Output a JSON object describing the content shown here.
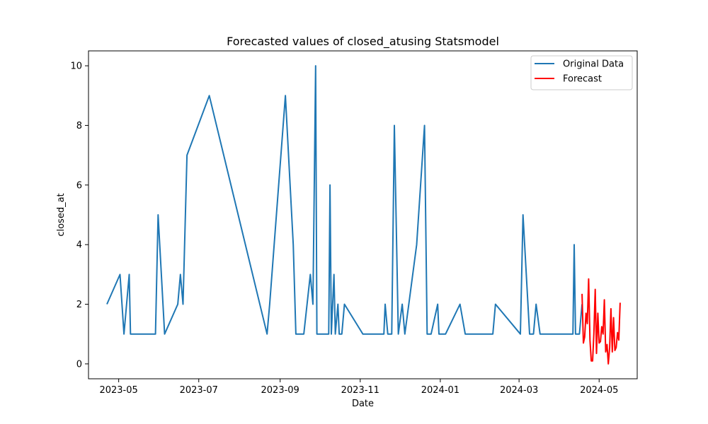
{
  "chart_data": {
    "type": "line",
    "title": "Forecasted values of closed_atusing Statsmodel",
    "xlabel": "Date",
    "ylabel": "closed_at",
    "xlim": [
      "2023-04-08",
      "2024-05-30"
    ],
    "ylim": [
      -0.5,
      10.5
    ],
    "x_ticks": [
      "2023-05",
      "2023-07",
      "2023-09",
      "2023-11",
      "2024-01",
      "2024-03",
      "2024-05"
    ],
    "y_ticks": [
      0,
      2,
      4,
      6,
      8,
      10
    ],
    "grid": false,
    "legend_position": "top-right",
    "series": [
      {
        "name": "Original Data",
        "color": "#1f77b4",
        "points": [
          [
            "2023-04-22",
            2
          ],
          [
            "2023-05-02",
            3
          ],
          [
            "2023-05-05",
            1
          ],
          [
            "2023-05-09",
            3
          ],
          [
            "2023-05-10",
            1
          ],
          [
            "2023-05-29",
            1
          ],
          [
            "2023-05-31",
            5
          ],
          [
            "2023-06-05",
            1
          ],
          [
            "2023-06-15",
            2
          ],
          [
            "2023-06-17",
            3
          ],
          [
            "2023-06-19",
            2
          ],
          [
            "2023-06-22",
            7
          ],
          [
            "2023-07-09",
            9
          ],
          [
            "2023-08-22",
            1
          ],
          [
            "2023-08-24",
            2
          ],
          [
            "2023-09-05",
            9
          ],
          [
            "2023-09-11",
            4
          ],
          [
            "2023-09-13",
            1
          ],
          [
            "2023-09-19",
            1
          ],
          [
            "2023-09-24",
            3
          ],
          [
            "2023-09-26",
            2
          ],
          [
            "2023-09-28",
            10
          ],
          [
            "2023-09-29",
            1
          ],
          [
            "2023-10-08",
            1
          ],
          [
            "2023-10-09",
            6
          ],
          [
            "2023-10-10",
            1
          ],
          [
            "2023-10-12",
            3
          ],
          [
            "2023-10-13",
            1
          ],
          [
            "2023-10-15",
            2
          ],
          [
            "2023-10-16",
            1
          ],
          [
            "2023-10-18",
            1
          ],
          [
            "2023-10-20",
            2
          ],
          [
            "2023-11-03",
            1
          ],
          [
            "2023-11-19",
            1
          ],
          [
            "2023-11-20",
            2
          ],
          [
            "2023-11-22",
            1
          ],
          [
            "2023-11-25",
            1
          ],
          [
            "2023-11-27",
            8
          ],
          [
            "2023-11-30",
            1
          ],
          [
            "2023-12-03",
            2
          ],
          [
            "2023-12-05",
            1
          ],
          [
            "2023-12-08",
            2
          ],
          [
            "2023-12-14",
            4
          ],
          [
            "2023-12-20",
            8
          ],
          [
            "2023-12-22",
            1
          ],
          [
            "2023-12-25",
            1
          ],
          [
            "2023-12-30",
            2
          ],
          [
            "2023-12-31",
            1
          ],
          [
            "2024-01-05",
            1
          ],
          [
            "2024-01-16",
            2
          ],
          [
            "2024-01-20",
            1
          ],
          [
            "2024-02-10",
            1
          ],
          [
            "2024-02-12",
            2
          ],
          [
            "2024-03-02",
            1
          ],
          [
            "2024-03-04",
            5
          ],
          [
            "2024-03-09",
            1
          ],
          [
            "2024-03-12",
            1
          ],
          [
            "2024-03-14",
            2
          ],
          [
            "2024-03-17",
            1
          ],
          [
            "2024-04-11",
            1
          ],
          [
            "2024-04-12",
            4
          ],
          [
            "2024-04-13",
            1
          ],
          [
            "2024-04-16",
            1
          ],
          [
            "2024-04-18",
            2
          ]
        ]
      },
      {
        "name": "Forecast",
        "color": "#ff0000",
        "points": [
          [
            "2024-04-18",
            2.35
          ],
          [
            "2024-04-19",
            0.7
          ],
          [
            "2024-04-20",
            0.9
          ],
          [
            "2024-04-21",
            1.7
          ],
          [
            "2024-04-22",
            1.35
          ],
          [
            "2024-04-23",
            2.85
          ],
          [
            "2024-04-24",
            0.8
          ],
          [
            "2024-04-25",
            0.1
          ],
          [
            "2024-04-26",
            0.1
          ],
          [
            "2024-04-27",
            1.0
          ],
          [
            "2024-04-28",
            2.5
          ],
          [
            "2024-04-29",
            0.35
          ],
          [
            "2024-04-30",
            1.7
          ],
          [
            "2024-05-01",
            0.7
          ],
          [
            "2024-05-02",
            0.75
          ],
          [
            "2024-05-03",
            1.25
          ],
          [
            "2024-05-04",
            1.0
          ],
          [
            "2024-05-05",
            2.15
          ],
          [
            "2024-05-06",
            0.4
          ],
          [
            "2024-05-07",
            0.65
          ],
          [
            "2024-05-08",
            0.0
          ],
          [
            "2024-05-09",
            0.55
          ],
          [
            "2024-05-10",
            1.85
          ],
          [
            "2024-05-11",
            0.4
          ],
          [
            "2024-05-12",
            1.55
          ],
          [
            "2024-05-13",
            0.45
          ],
          [
            "2024-05-14",
            0.55
          ],
          [
            "2024-05-15",
            1.05
          ],
          [
            "2024-05-16",
            0.8
          ],
          [
            "2024-05-17",
            2.05
          ]
        ]
      }
    ]
  }
}
